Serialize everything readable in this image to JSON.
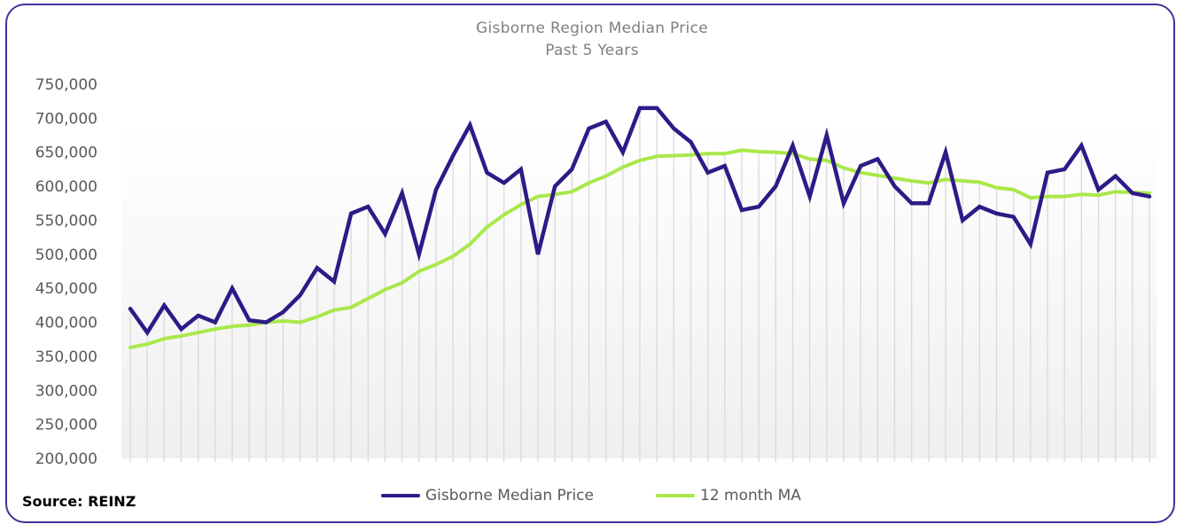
{
  "chart_data": {
    "type": "line",
    "title": "Gisborne Region Median Price",
    "subtitle": "Past 5 Years",
    "xlabel": "",
    "ylabel": "",
    "ylim": [
      200000,
      750000
    ],
    "yticks": [
      "200,000",
      "250,000",
      "300,000",
      "350,000",
      "400,000",
      "450,000",
      "500,000",
      "550,000",
      "600,000",
      "650,000",
      "700,000",
      "750,000"
    ],
    "ytick_values": [
      200000,
      250000,
      300000,
      350000,
      400000,
      450000,
      500000,
      550000,
      600000,
      650000,
      700000,
      750000
    ],
    "grid": "vertical lines at each month",
    "legend_position": "bottom",
    "series": [
      {
        "name": "Gisborne Median Price",
        "color": "#2e1a87",
        "values": [
          420000,
          385000,
          425000,
          390000,
          410000,
          400000,
          450000,
          403000,
          400000,
          415000,
          440000,
          480000,
          460000,
          560000,
          570000,
          530000,
          590000,
          500000,
          595000,
          645000,
          690000,
          620000,
          605000,
          625000,
          500000,
          600000,
          625000,
          685000,
          695000,
          650000,
          715000,
          715000,
          685000,
          665000,
          620000,
          630000,
          565000,
          570000,
          600000,
          660000,
          585000,
          675000,
          575000,
          630000,
          640000,
          600000,
          575000,
          575000,
          650000,
          550000,
          570000,
          560000,
          555000,
          515000,
          620000,
          625000,
          660000,
          595000,
          615000,
          590000,
          585000
        ]
      },
      {
        "name": "12 month MA",
        "color": "#a9e84a",
        "values": [
          363000,
          368000,
          376000,
          380000,
          385000,
          390000,
          394000,
          396000,
          400000,
          402000,
          400000,
          408000,
          418000,
          422000,
          435000,
          448000,
          458000,
          475000,
          485000,
          497000,
          515000,
          540000,
          558000,
          573000,
          585000,
          588000,
          592000,
          605000,
          615000,
          628000,
          638000,
          644000,
          645000,
          646000,
          648000,
          648000,
          653000,
          651000,
          650000,
          648000,
          640000,
          638000,
          627000,
          620000,
          616000,
          612000,
          608000,
          605000,
          610000,
          608000,
          606000,
          598000,
          595000,
          583000,
          585000,
          585000,
          588000,
          587000,
          592000,
          591000,
          590000
        ]
      }
    ]
  },
  "source": "Source: REINZ"
}
